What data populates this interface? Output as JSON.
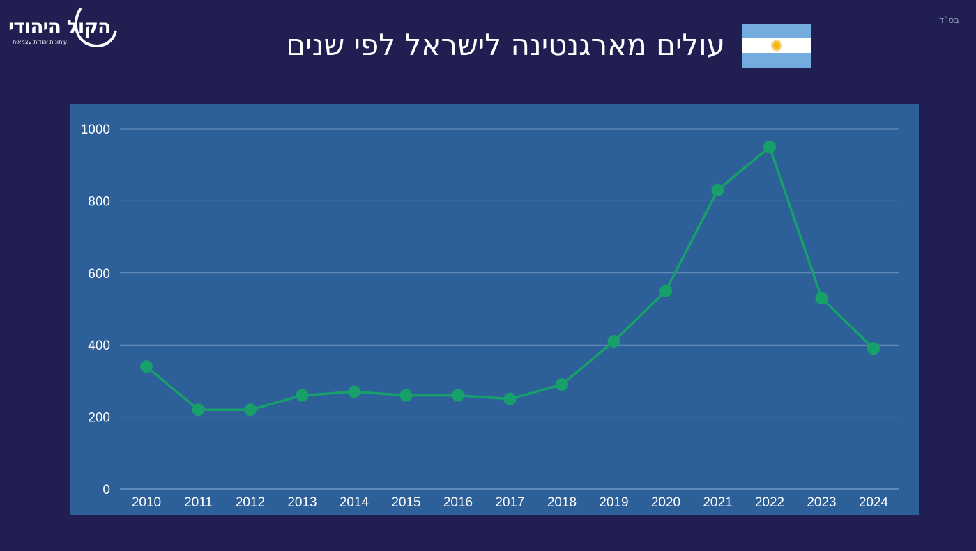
{
  "header": {
    "title": "עולים מארגנטינה לישראל לפי שנים",
    "corner_mark": "בס\"ד",
    "logo_text": "הקול היהודי",
    "logo_subtitle": "עיתונות יהודית עצמאית",
    "flag_icon": "argentina-flag-icon"
  },
  "colors": {
    "background": "#211f52",
    "panel": "#2d5f99",
    "line": "#17a06a",
    "grid": "#6f93c0",
    "flag_blue": "#74acdf",
    "flag_sun": "#f6b40e"
  },
  "chart_data": {
    "type": "line",
    "title": "עולים מארגנטינה לישראל לפי שנים",
    "xlabel": "",
    "ylabel": "",
    "categories": [
      "2010",
      "2011",
      "2012",
      "2013",
      "2014",
      "2015",
      "2016",
      "2017",
      "2018",
      "2019",
      "2020",
      "2021",
      "2022",
      "2023",
      "2024"
    ],
    "series": [
      {
        "values": [
          340,
          220,
          220,
          260,
          270,
          260,
          260,
          250,
          290,
          410,
          550,
          830,
          950,
          530,
          390
        ]
      }
    ],
    "ylim": [
      0,
      1000
    ],
    "yticks": [
      "0",
      "200",
      "400",
      "600",
      "800",
      "1000"
    ],
    "grid": true,
    "legend": "none"
  }
}
